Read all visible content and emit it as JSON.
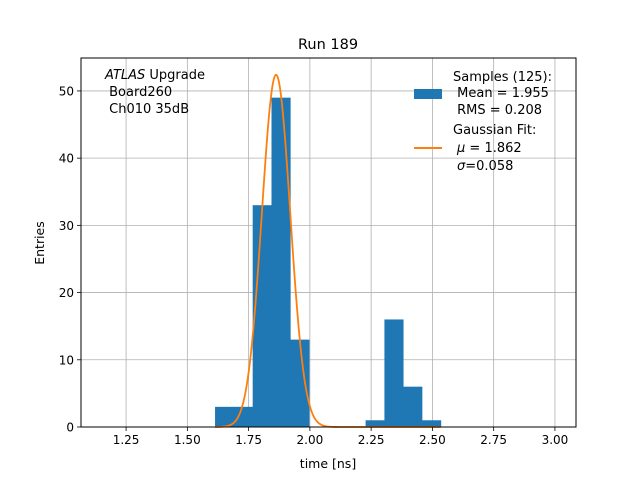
{
  "chart_data": {
    "type": "bar",
    "title": "Run 189",
    "xlabel": "time [ns]",
    "ylabel": "Entries",
    "xlim": [
      1.066,
      3.086
    ],
    "ylim": [
      0,
      54.9
    ],
    "grid": true,
    "xticks": [
      "1.25",
      "1.50",
      "1.75",
      "2.00",
      "2.25",
      "2.50",
      "2.75",
      "3.00"
    ],
    "xtick_values": [
      1.25,
      1.5,
      1.75,
      2.0,
      2.25,
      2.5,
      2.75,
      3.0
    ],
    "yticks": [
      "0",
      "10",
      "20",
      "30",
      "40",
      "50"
    ],
    "ytick_values": [
      0,
      10,
      20,
      30,
      40,
      50
    ],
    "histogram": {
      "name": "Samples (125):",
      "bin_start": 1.613,
      "bin_width": 0.0768,
      "counts": [
        3,
        3,
        33,
        49,
        13,
        0,
        0,
        0,
        1,
        16,
        6,
        1
      ],
      "color": "#1f77b4"
    },
    "fit": {
      "name": "Gaussian Fit:",
      "mu": 1.862,
      "sigma": 0.058,
      "amplitude": 52.4,
      "range": [
        1.613,
        2.534
      ],
      "color": "#ff7f0e"
    },
    "annotation": {
      "italic": "ATLAS",
      "line1_rest": " Upgrade",
      "line2": " Board260",
      "line3": " Ch010 35dB"
    },
    "legend": {
      "placement": "top-right",
      "samples_title": "Samples (125):",
      "mean": " Mean = 1.955",
      "rms": " RMS = 0.208",
      "fit_title": "Gaussian Fit:",
      "mu_sym": "μ",
      "mu_text": " = 1.862",
      "sigma_sym": "σ",
      "sigma_text": "=0.058"
    }
  }
}
